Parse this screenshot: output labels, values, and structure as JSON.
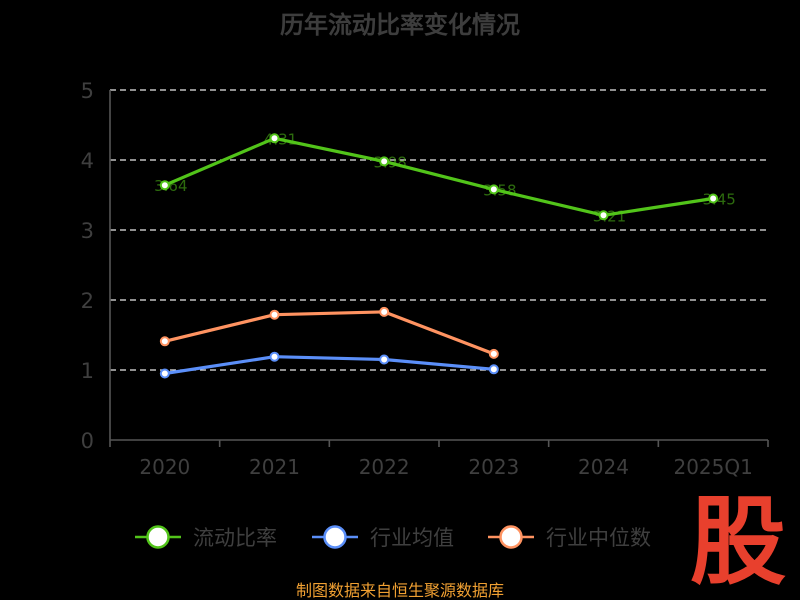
{
  "chart_data": {
    "type": "line",
    "title": "历年流动比率变化情况",
    "categories": [
      "2020",
      "2021",
      "2022",
      "2023",
      "2024",
      "2025Q1"
    ],
    "ylim": [
      0,
      5
    ],
    "yticks": [
      "0",
      "1",
      "2",
      "3",
      "4",
      "5"
    ],
    "grid": true,
    "legend_position": "bottom",
    "series": [
      {
        "name": "流动比率",
        "color": "#52c41a",
        "values": [
          3.64,
          4.31,
          3.98,
          3.58,
          3.21,
          3.45
        ],
        "labels": [
          "3.64",
          "4.31",
          "3.98",
          "3.58",
          "3.21",
          "3.45"
        ]
      },
      {
        "name": "行业均值",
        "color": "#5b8ff9",
        "values": [
          0.95,
          1.19,
          1.15,
          1.01,
          null,
          null
        ]
      },
      {
        "name": "行业中位数",
        "color": "#ff9361",
        "values": [
          1.41,
          1.79,
          1.83,
          1.23,
          null,
          null
        ]
      }
    ]
  },
  "source_text": "制图数据来自恒生聚源数据库",
  "watermark_text": "股"
}
